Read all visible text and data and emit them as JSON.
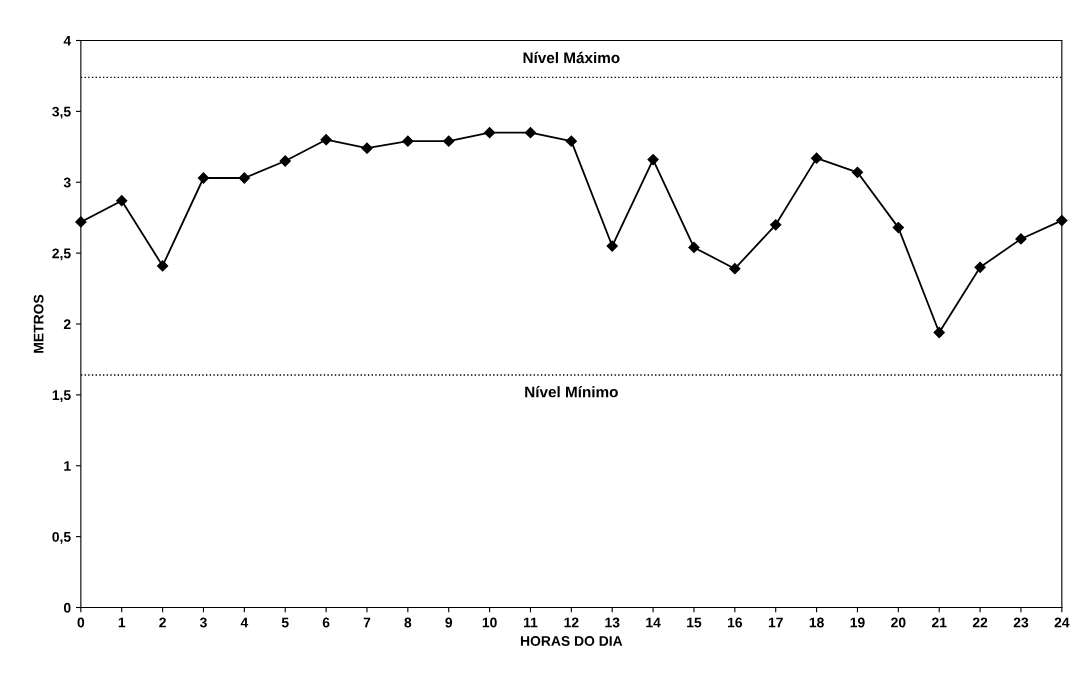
{
  "chart_data": {
    "type": "line",
    "xlabel": "HORAS DO DIA",
    "ylabel": "METROS",
    "x": [
      0,
      1,
      2,
      3,
      4,
      5,
      6,
      7,
      8,
      9,
      10,
      11,
      12,
      13,
      14,
      15,
      16,
      17,
      18,
      19,
      20,
      21,
      22,
      23,
      24
    ],
    "series": [
      {
        "color": "#000000",
        "values": [
          2.72,
          2.87,
          2.41,
          3.03,
          3.03,
          3.15,
          3.3,
          3.24,
          3.29,
          3.29,
          3.35,
          3.35,
          3.29,
          2.55,
          3.16,
          2.54,
          2.39,
          2.7,
          3.17,
          3.07,
          2.68,
          1.94,
          2.4,
          2.6,
          2.73
        ]
      }
    ],
    "xlim": [
      0,
      24
    ],
    "xticks": [
      0,
      1,
      2,
      3,
      4,
      5,
      6,
      7,
      8,
      9,
      10,
      11,
      12,
      13,
      14,
      15,
      16,
      17,
      18,
      19,
      20,
      21,
      22,
      23,
      24
    ],
    "ylim": [
      0,
      4
    ],
    "yticks": [
      0,
      {
        "value": 0.5,
        "label": "0,5"
      },
      1,
      {
        "value": 1.5,
        "label": "1,5"
      },
      2,
      {
        "value": 2.5,
        "label": "2,5"
      },
      3,
      {
        "value": 3.5,
        "label": "3,5"
      },
      4
    ],
    "ref_lines": [
      {
        "axis": "y",
        "value": 3.74,
        "label": "Nível Máximo",
        "color": "#000000",
        "line_style": "dotted"
      },
      {
        "axis": "y",
        "value": 1.64,
        "label": "Nível Mínimo",
        "color": "#000000",
        "line_style": "dotted"
      }
    ],
    "marker": "diamond",
    "line_style": "solid",
    "grid": false,
    "legend": false
  }
}
